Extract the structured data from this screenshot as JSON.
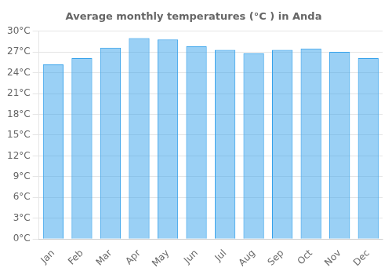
{
  "chart_data": {
    "type": "bar",
    "title": "Average monthly temperatures (°C ) in Anda",
    "categories": [
      "Jan",
      "Feb",
      "Mar",
      "Apr",
      "May",
      "Jun",
      "Jul",
      "Aug",
      "Sep",
      "Oct",
      "Nov",
      "Dec"
    ],
    "values": [
      25.2,
      26.1,
      27.6,
      29.0,
      28.8,
      27.8,
      27.3,
      26.8,
      27.3,
      27.5,
      27.0,
      26.1
    ],
    "ylim": [
      0,
      30
    ],
    "yticks": [
      {
        "value": 0,
        "label": "0°C"
      },
      {
        "value": 3,
        "label": "3°C"
      },
      {
        "value": 6,
        "label": "6°C"
      },
      {
        "value": 9,
        "label": "9°C"
      },
      {
        "value": 12,
        "label": "12°C"
      },
      {
        "value": 15,
        "label": "15°C"
      },
      {
        "value": 18,
        "label": "18°C"
      },
      {
        "value": 21,
        "label": "21°C"
      },
      {
        "value": 24,
        "label": "24°C"
      },
      {
        "value": 27,
        "label": "27°C"
      },
      {
        "value": 30,
        "label": "30°C"
      }
    ],
    "grid": "y"
  }
}
